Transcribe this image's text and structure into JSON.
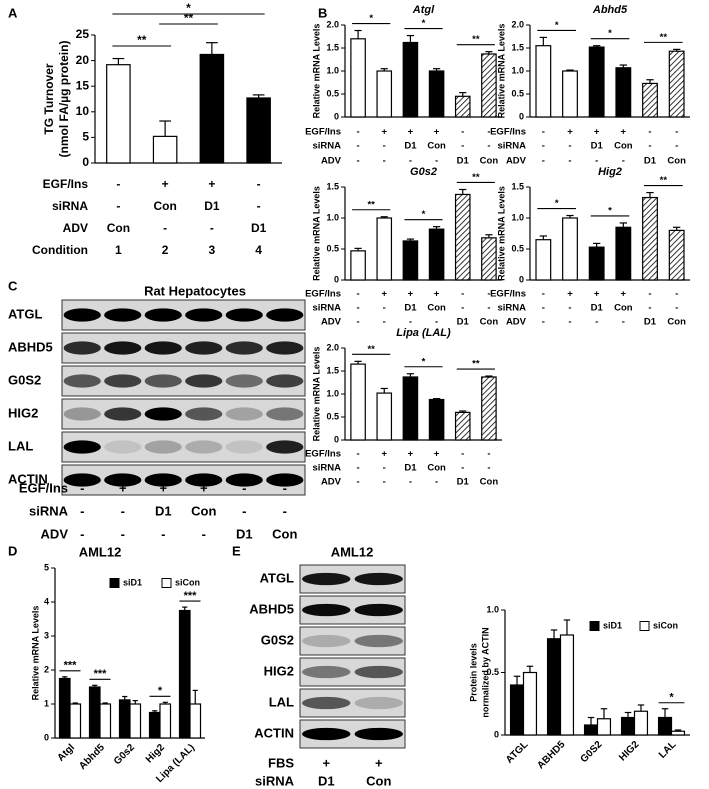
{
  "panel_labels": [
    "A",
    "B",
    "C",
    "D",
    "E"
  ],
  "chart_data": [
    {
      "type": "bar",
      "y_label": [
        "TG Turnover",
        "(nmol FA/µg protein)"
      ],
      "values": [
        19.2,
        5.2,
        21.2,
        12.7
      ],
      "errors": [
        1.2,
        3.0,
        2.3,
        0.6
      ],
      "bar_styles": [
        "open",
        "open",
        "solid",
        "solid"
      ],
      "ylim": [
        0,
        25
      ],
      "yticks": [
        0,
        5,
        10,
        15,
        20,
        25
      ],
      "annotations": [
        "*",
        "**",
        "**"
      ],
      "conditions": [
        {
          "label": "EGF/Ins",
          "cells": [
            "-",
            "+",
            "+",
            "-"
          ]
        },
        {
          "label": "siRNA",
          "cells": [
            "-",
            "Con",
            "D1",
            "-"
          ]
        },
        {
          "label": "ADV",
          "cells": [
            "Con",
            "-",
            "-",
            "D1"
          ]
        },
        {
          "label": "Condition",
          "cells": [
            "1",
            "2",
            "3",
            "4"
          ]
        }
      ]
    },
    {
      "type": "bar",
      "title": "Atgl",
      "y_label": "Relative mRNA Levels",
      "values": [
        1.7,
        1.0,
        1.62,
        1.0,
        0.45,
        1.37
      ],
      "errors": [
        0.18,
        0.05,
        0.15,
        0.05,
        0.08,
        0.05
      ],
      "bar_styles": [
        "open",
        "open",
        "solid",
        "solid",
        "hatched",
        "hatched"
      ],
      "ylim": [
        0,
        2
      ],
      "yticks": [
        0,
        0.5,
        {
          "value": 1,
          "label": "1.0"
        },
        1.5,
        {
          "value": 2,
          "label": "2.0"
        }
      ],
      "annotations": [
        "*",
        "*",
        "**"
      ],
      "conditions": [
        {
          "label": "EGF/Ins",
          "cells": [
            "-",
            "+",
            "+",
            "+",
            "-",
            "-"
          ]
        },
        {
          "label": "siRNA",
          "cells": [
            "-",
            "-",
            "D1",
            "Con",
            "-",
            "-"
          ]
        },
        {
          "label": "ADV",
          "cells": [
            "-",
            "-",
            "-",
            "-",
            "D1",
            "Con"
          ]
        }
      ]
    },
    {
      "type": "bar",
      "title": "Abhd5",
      "y_label": "Relative mRNA Levels",
      "values": [
        1.55,
        1.0,
        1.52,
        1.07,
        0.73,
        1.43
      ],
      "errors": [
        0.18,
        0.02,
        0.03,
        0.06,
        0.08,
        0.04
      ],
      "bar_styles": [
        "open",
        "open",
        "solid",
        "solid",
        "hatched",
        "hatched"
      ],
      "ylim": [
        0,
        2
      ],
      "yticks": [
        0,
        0.5,
        {
          "value": 1,
          "label": "1.0"
        },
        1.5,
        {
          "value": 2,
          "label": "2.0"
        }
      ],
      "annotations": [
        "*",
        "*",
        "**"
      ],
      "conditions": [
        {
          "label": "EGF/Ins",
          "cells": [
            "-",
            "+",
            "+",
            "+",
            "-",
            "-"
          ]
        },
        {
          "label": "siRNA",
          "cells": [
            "-",
            "-",
            "D1",
            "Con",
            "-",
            "-"
          ]
        },
        {
          "label": "ADV",
          "cells": [
            "-",
            "-",
            "-",
            "-",
            "D1",
            "Con"
          ]
        }
      ]
    },
    {
      "type": "bar",
      "title": "G0s2",
      "y_label": "Relative mRNA Levels",
      "values": [
        0.47,
        1.0,
        0.63,
        0.82,
        1.38,
        0.68
      ],
      "errors": [
        0.04,
        0.02,
        0.03,
        0.04,
        0.08,
        0.05
      ],
      "bar_styles": [
        "open",
        "open",
        "solid",
        "solid",
        "hatched",
        "hatched"
      ],
      "ylim": [
        0,
        1.5
      ],
      "yticks": [
        0,
        0.5,
        {
          "value": 1,
          "label": "1.0"
        },
        1.5
      ],
      "annotations": [
        "**",
        "*",
        "**"
      ],
      "conditions": [
        {
          "label": "EGF/Ins",
          "cells": [
            "-",
            "+",
            "+",
            "+",
            "-",
            "-"
          ]
        },
        {
          "label": "siRNA",
          "cells": [
            "-",
            "-",
            "D1",
            "Con",
            "-",
            "-"
          ]
        },
        {
          "label": "ADV",
          "cells": [
            "-",
            "-",
            "-",
            "-",
            "D1",
            "Con"
          ]
        }
      ]
    },
    {
      "type": "bar",
      "title": "Hig2",
      "y_label": "Relative mRNA Levels",
      "values": [
        0.65,
        1.0,
        0.53,
        0.85,
        1.33,
        0.8
      ],
      "errors": [
        0.06,
        0.04,
        0.06,
        0.07,
        0.08,
        0.05
      ],
      "bar_styles": [
        "open",
        "open",
        "solid",
        "solid",
        "hatched",
        "hatched"
      ],
      "ylim": [
        0,
        1.5
      ],
      "yticks": [
        0,
        0.5,
        {
          "value": 1,
          "label": "1.0"
        },
        1.5
      ],
      "annotations": [
        "*",
        "*",
        "**"
      ],
      "conditions": [
        {
          "label": "EGF/Ins",
          "cells": [
            "-",
            "+",
            "+",
            "+",
            "-",
            "-"
          ]
        },
        {
          "label": "siRNA",
          "cells": [
            "-",
            "-",
            "D1",
            "Con",
            "-",
            "-"
          ]
        },
        {
          "label": "ADV",
          "cells": [
            "-",
            "-",
            "-",
            "-",
            "D1",
            "Con"
          ]
        }
      ]
    },
    {
      "type": "bar",
      "title": "Lipa (LAL)",
      "y_label": "Relative mRNA Levels",
      "values": [
        1.65,
        1.02,
        1.37,
        0.88,
        0.6,
        1.37
      ],
      "errors": [
        0.06,
        0.1,
        0.07,
        0.02,
        0.03,
        0.02
      ],
      "bar_styles": [
        "open",
        "open",
        "solid",
        "solid",
        "hatched",
        "hatched"
      ],
      "ylim": [
        0,
        2
      ],
      "yticks": [
        0,
        0.5,
        {
          "value": 1,
          "label": "1.0"
        },
        1.5,
        {
          "value": 2,
          "label": "2.0"
        }
      ],
      "annotations": [
        "**",
        "*",
        "**"
      ],
      "conditions": [
        {
          "label": "EGF/Ins",
          "cells": [
            "-",
            "+",
            "+",
            "+",
            "-",
            "-"
          ]
        },
        {
          "label": "siRNA",
          "cells": [
            "-",
            "-",
            "D1",
            "Con",
            "-",
            "-"
          ]
        },
        {
          "label": "ADV",
          "cells": [
            "-",
            "-",
            "-",
            "-",
            "D1",
            "Con"
          ]
        }
      ]
    },
    {
      "type": "grouped_bar",
      "title": "AML12",
      "y_label": "Relative mRNA Levels",
      "categories": [
        "Atgl",
        "Abhd5",
        "G0s2",
        "Hig2",
        "Lipa (LAL)"
      ],
      "series": [
        {
          "name": "siD1",
          "color": "#000000",
          "values": [
            1.75,
            1.5,
            1.12,
            0.75,
            3.75
          ],
          "errors": [
            0.05,
            0.05,
            0.1,
            0.05,
            0.1
          ]
        },
        {
          "name": "siCon",
          "color": "#ffffff",
          "values": [
            1.0,
            1.0,
            1.0,
            1.0,
            1.0
          ],
          "errors": [
            0.03,
            0.03,
            0.1,
            0.05,
            0.4
          ]
        }
      ],
      "ylim": [
        0,
        5
      ],
      "yticks": [
        0,
        1,
        2,
        3,
        4,
        5
      ],
      "annotations": [
        "***",
        "***",
        null,
        "*",
        "***"
      ]
    },
    {
      "type": "grouped_bar",
      "y_label": [
        "Protein levels",
        "normalized by ACTIN"
      ],
      "categories": [
        "ATGL",
        "ABHD5",
        "G0S2",
        "HIG2",
        "LAL"
      ],
      "series": [
        {
          "name": "siD1",
          "color": "#000000",
          "values": [
            0.4,
            0.77,
            0.08,
            0.14,
            0.14
          ],
          "errors": [
            0.07,
            0.07,
            0.06,
            0.04,
            0.07
          ]
        },
        {
          "name": "siCon",
          "color": "#ffffff",
          "values": [
            0.5,
            0.8,
            0.13,
            0.19,
            0.03
          ],
          "errors": [
            0.05,
            0.12,
            0.08,
            0.05,
            0.01
          ]
        }
      ],
      "ylim": [
        0,
        1
      ],
      "yticks": [
        0,
        0.5,
        {
          "value": 1,
          "label": "1.0"
        }
      ],
      "annotations": [
        null,
        null,
        null,
        null,
        "*"
      ]
    }
  ],
  "blot_c": {
    "title": "Rat Hepatocytes",
    "bands": [
      "ATGL",
      "ABHD5",
      "G0S2",
      "HIG2",
      "LAL",
      "ACTIN"
    ],
    "rows": [
      {
        "label": "EGF/Ins",
        "cells": [
          "-",
          "+",
          "+",
          "+",
          "-",
          "-"
        ]
      },
      {
        "label": "siRNA",
        "cells": [
          "-",
          "-",
          "D1",
          "Con",
          "-",
          "-"
        ]
      },
      {
        "label": "ADV",
        "cells": [
          "-",
          "-",
          "-",
          "-",
          "D1",
          "Con"
        ]
      }
    ]
  },
  "blot_e": {
    "title": "AML12",
    "bands": [
      "ATGL",
      "ABHD5",
      "G0S2",
      "HIG2",
      "LAL",
      "ACTIN"
    ],
    "rows": [
      {
        "label": "FBS",
        "cells": [
          "+",
          "+"
        ]
      },
      {
        "label": "siRNA",
        "cells": [
          "D1",
          "Con"
        ]
      }
    ]
  }
}
